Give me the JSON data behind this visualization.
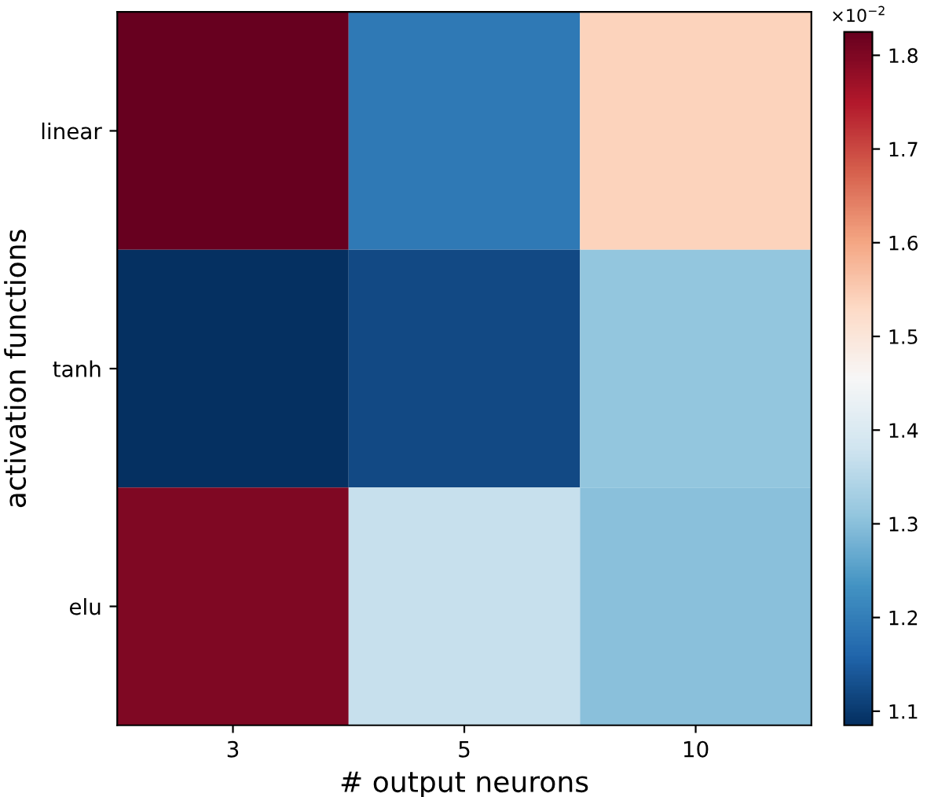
{
  "chart_data": {
    "type": "heatmap",
    "xlabel": "# output neurons",
    "ylabel": "activation functions",
    "categories": [
      "3",
      "5",
      "10"
    ],
    "y_categories": [
      "linear",
      "tanh",
      "elu"
    ],
    "cells": [
      [
        1.825,
        1.19,
        1.54
      ],
      [
        1.085,
        1.12,
        1.31
      ],
      [
        1.8,
        1.37,
        1.3
      ]
    ],
    "clim": [
      1.085,
      1.825
    ],
    "cticks": [
      1.1,
      1.2,
      1.3,
      1.4,
      1.5,
      1.6,
      1.7,
      1.8
    ],
    "annotations": [
      "×10$^{−2}$"
    ]
  }
}
